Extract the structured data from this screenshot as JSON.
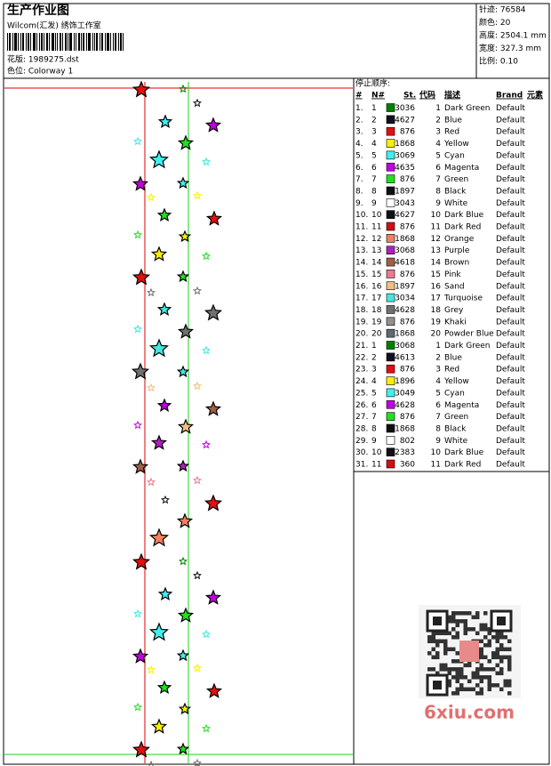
{
  "header": {
    "title": "生产作业图",
    "subtitle": "Wilcom(汇发) 绣饰工作室",
    "design": "花版: 1989275.dst",
    "colorway": "色位: Colorway 1"
  },
  "info": [
    "针迹: 76584",
    "颜色: 20",
    "高度: 2504.1 mm",
    "宽度: 327.3 mm",
    "比例: 0.10"
  ],
  "table": {
    "title": "停止顺序:",
    "columns": [
      "#",
      "N#",
      "St.",
      "代码",
      "描述",
      "Brand",
      "元素"
    ],
    "rows": [
      [
        "1.",
        "1",
        "#008000",
        "3036",
        "1",
        "Dark Green",
        "Default"
      ],
      [
        "2.",
        "2",
        "#101020",
        "4627",
        "2",
        "Blue",
        "Default"
      ],
      [
        "3.",
        "3",
        "#e01010",
        "876",
        "3",
        "Red",
        "Default"
      ],
      [
        "4.",
        "4",
        "#f8f000",
        "1868",
        "4",
        "Yellow",
        "Default"
      ],
      [
        "5.",
        "5",
        "#40f0f0",
        "3069",
        "5",
        "Cyan",
        "Default"
      ],
      [
        "6.",
        "6",
        "#c000e0",
        "4635",
        "6",
        "Magenta",
        "Default"
      ],
      [
        "7.",
        "7",
        "#20e020",
        "876",
        "7",
        "Green",
        "Default"
      ],
      [
        "8.",
        "8",
        "#101010",
        "1897",
        "8",
        "Black",
        "Default"
      ],
      [
        "9.",
        "9",
        "#ffffff",
        "3043",
        "9",
        "White",
        "Default"
      ],
      [
        "10.",
        "10",
        "#101018",
        "4627",
        "10",
        "Dark Blue",
        "Default"
      ],
      [
        "11.",
        "11",
        "#d01010",
        "876",
        "11",
        "Dark Red",
        "Default"
      ],
      [
        "12.",
        "12",
        "#f08060",
        "1868",
        "12",
        "Orange",
        "Default"
      ],
      [
        "13.",
        "13",
        "#b020c0",
        "3068",
        "13",
        "Purple",
        "Default"
      ],
      [
        "14.",
        "14",
        "#a06048",
        "4618",
        "14",
        "Brown",
        "Default"
      ],
      [
        "15.",
        "15",
        "#f07890",
        "876",
        "15",
        "Pink",
        "Default"
      ],
      [
        "16.",
        "16",
        "#f0c080",
        "1897",
        "16",
        "Sand",
        "Default"
      ],
      [
        "17.",
        "17",
        "#40e8e0",
        "3034",
        "17",
        "Turquoise",
        "Default"
      ],
      [
        "18.",
        "18",
        "#707070",
        "4628",
        "18",
        "Grey",
        "Default"
      ],
      [
        "19.",
        "19",
        "#909090",
        "876",
        "19",
        "Khaki",
        "Default"
      ],
      [
        "20.",
        "20",
        "#606870",
        "1868",
        "20",
        "Powder Blue",
        "Default"
      ],
      [
        "21.",
        "1",
        "#008000",
        "3068",
        "1",
        "Dark Green",
        "Default"
      ],
      [
        "22.",
        "2",
        "#101020",
        "4613",
        "2",
        "Blue",
        "Default"
      ],
      [
        "23.",
        "3",
        "#e01010",
        "876",
        "3",
        "Red",
        "Default"
      ],
      [
        "24.",
        "4",
        "#f8f000",
        "1896",
        "4",
        "Yellow",
        "Default"
      ],
      [
        "25.",
        "5",
        "#40f0f0",
        "3049",
        "5",
        "Cyan",
        "Default"
      ],
      [
        "26.",
        "6",
        "#c000e0",
        "4628",
        "6",
        "Magenta",
        "Default"
      ],
      [
        "27.",
        "7",
        "#20e020",
        "876",
        "7",
        "Green",
        "Default"
      ],
      [
        "28.",
        "8",
        "#101010",
        "1868",
        "8",
        "Black",
        "Default"
      ],
      [
        "29.",
        "9",
        "#ffffff",
        "802",
        "9",
        "White",
        "Default"
      ],
      [
        "30.",
        "10",
        "#101018",
        "2383",
        "10",
        "Dark Blue",
        "Default"
      ],
      [
        "31.",
        "11",
        "#d01010",
        "360",
        "11",
        "Dark Red",
        "Default"
      ]
    ]
  },
  "watermark": "6xiu.com"
}
